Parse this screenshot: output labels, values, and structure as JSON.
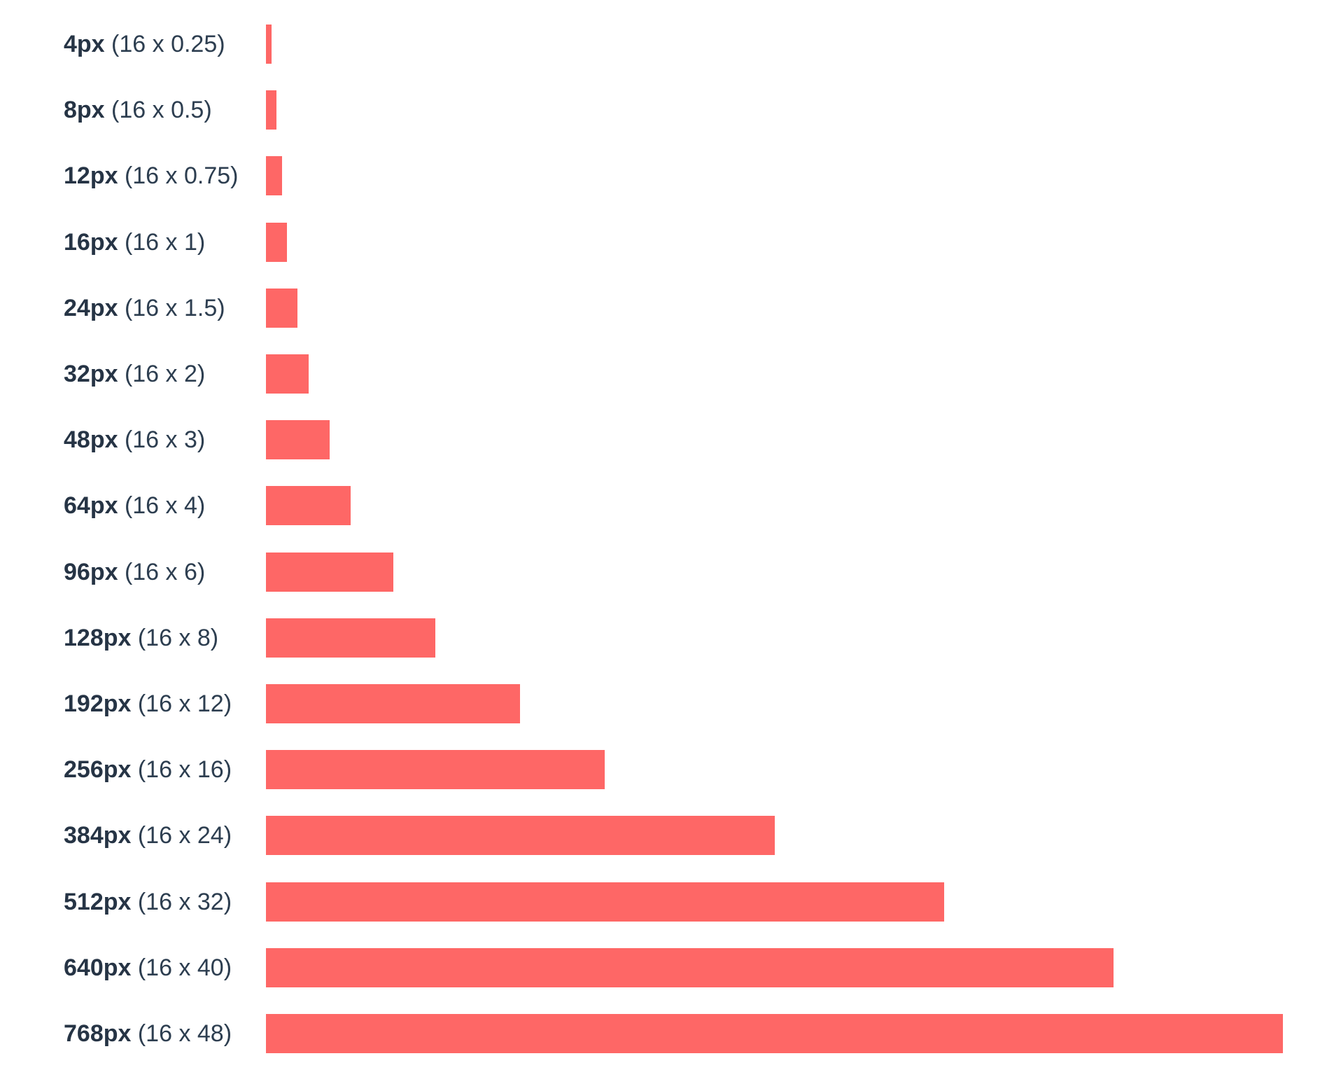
{
  "colors": {
    "bar": "#fe6766",
    "label_strong": "#263445",
    "label": "#2d3e50",
    "background": "#ffffff"
  },
  "chart_data": {
    "type": "bar",
    "orientation": "horizontal",
    "title": "",
    "xlabel": "",
    "ylabel": "",
    "grid": false,
    "legend": "none",
    "xlim": [
      0,
      768
    ],
    "rows": [
      {
        "label": "4px",
        "calc": "(16 x 0.25)",
        "value": 4
      },
      {
        "label": "8px",
        "calc": "(16 x 0.5)",
        "value": 8
      },
      {
        "label": "12px",
        "calc": "(16 x 0.75)",
        "value": 12
      },
      {
        "label": "16px",
        "calc": "(16 x 1)",
        "value": 16
      },
      {
        "label": "24px",
        "calc": "(16 x 1.5)",
        "value": 24
      },
      {
        "label": "32px",
        "calc": "(16 x 2)",
        "value": 32
      },
      {
        "label": "48px",
        "calc": "(16 x 3)",
        "value": 48
      },
      {
        "label": "64px",
        "calc": "(16 x 4)",
        "value": 64
      },
      {
        "label": "96px",
        "calc": "(16 x 6)",
        "value": 96
      },
      {
        "label": "128px",
        "calc": "(16 x 8)",
        "value": 128
      },
      {
        "label": "192px",
        "calc": "(16 x 12)",
        "value": 192
      },
      {
        "label": "256px",
        "calc": "(16 x 16)",
        "value": 256
      },
      {
        "label": "384px",
        "calc": "(16 x 24)",
        "value": 384
      },
      {
        "label": "512px",
        "calc": "(16 x 32)",
        "value": 512
      },
      {
        "label": "640px",
        "calc": "(16 x 40)",
        "value": 640
      },
      {
        "label": "768px",
        "calc": "(16 x 48)",
        "value": 768
      }
    ]
  }
}
